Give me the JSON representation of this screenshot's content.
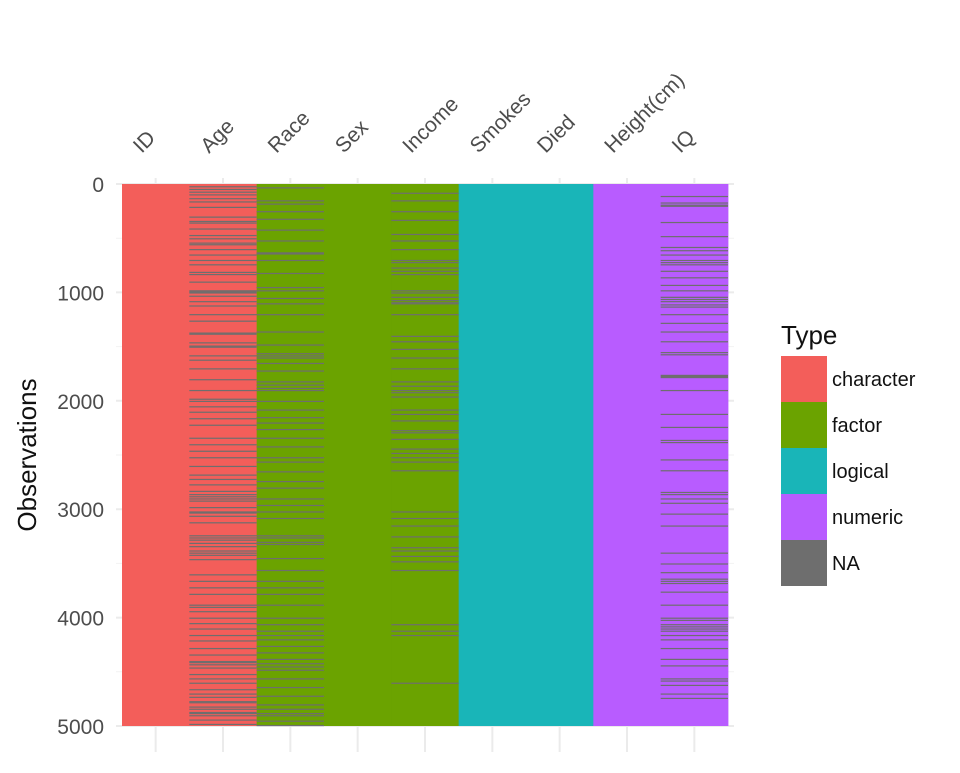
{
  "chart_data": {
    "type": "heatmap",
    "title": "",
    "xlabel": "",
    "ylabel": "Observations",
    "ylim": [
      0,
      5000
    ],
    "yticks": [
      0,
      1000,
      2000,
      3000,
      4000,
      5000
    ],
    "y_reversed": true,
    "columns": [
      {
        "name": "ID",
        "type": "character",
        "missing": []
      },
      {
        "name": "Age",
        "type": "character",
        "missing": [
          20,
          45,
          70,
          95,
          130,
          160,
          210,
          300,
          340,
          355,
          410,
          470,
          500,
          540,
          555,
          600,
          650,
          700,
          740,
          810,
          830,
          900,
          980,
          990,
          1000,
          1030,
          1080,
          1120,
          1200,
          1260,
          1370,
          1380,
          1460,
          1490,
          1500,
          1580,
          1620,
          1700,
          1800,
          1900,
          1980,
          2000,
          2050,
          2100,
          2160,
          2220,
          2340,
          2400,
          2460,
          2520,
          2600,
          2680,
          2720,
          2770,
          2830,
          2860,
          2880,
          2900,
          2920,
          2980,
          3020,
          3030,
          3060,
          3120,
          3240,
          3260,
          3280,
          3310,
          3340,
          3380,
          3400,
          3420,
          3460,
          3600,
          3660,
          3720,
          3780,
          3880,
          3900,
          3940,
          4000,
          4050,
          4100,
          4160,
          4210,
          4280,
          4340,
          4400,
          4410,
          4430,
          4460,
          4520,
          4560,
          4600,
          4660,
          4700,
          4730,
          4770,
          4780,
          4820,
          4840,
          4870,
          4880,
          4900,
          4940,
          4980
        ]
      },
      {
        "name": "Race",
        "type": "factor",
        "missing": [
          30,
          150,
          180,
          250,
          320,
          420,
          520,
          630,
          640,
          700,
          820,
          950,
          980,
          1050,
          1100,
          1200,
          1360,
          1480,
          1560,
          1580,
          1600,
          1650,
          1720,
          1820,
          1850,
          1880,
          1900,
          2000,
          2080,
          2150,
          2200,
          2260,
          2340,
          2420,
          2520,
          2560,
          2650,
          2740,
          2800,
          2900,
          2960,
          3020,
          3080,
          3240,
          3260,
          3300,
          3320,
          3450,
          3560,
          3660,
          3720,
          3780,
          3880,
          4000,
          4060,
          4120,
          4160,
          4200,
          4260,
          4320,
          4380,
          4420,
          4450,
          4480,
          4560,
          4640,
          4720,
          4800,
          4840,
          4880,
          4900,
          4950,
          4990
        ]
      },
      {
        "name": "Sex",
        "type": "factor",
        "missing": []
      },
      {
        "name": "Income",
        "type": "factor",
        "missing": [
          80,
          150,
          250,
          330,
          460,
          520,
          600,
          700,
          720,
          770,
          800,
          830,
          980,
          1000,
          1040,
          1070,
          1090,
          1100,
          1200,
          1400,
          1450,
          1520,
          1600,
          1700,
          1820,
          1860,
          1900,
          1920,
          1960,
          2080,
          2120,
          2180,
          2270,
          2290,
          2350,
          2440,
          2480,
          2520,
          2560,
          2640,
          3020,
          3080,
          3150,
          3250,
          3350,
          3380,
          3430,
          3480,
          3560,
          4060,
          4120,
          4160,
          4600
        ]
      },
      {
        "name": "Smokes",
        "type": "logical",
        "missing": []
      },
      {
        "name": "Died",
        "type": "logical",
        "missing": []
      },
      {
        "name": "Height(cm)",
        "type": "numeric",
        "missing": []
      },
      {
        "name": "IQ",
        "type": "numeric",
        "missing": [
          110,
          170,
          190,
          200,
          350,
          480,
          580,
          610,
          650,
          700,
          720,
          740,
          800,
          860,
          930,
          980,
          1040,
          1060,
          1080,
          1110,
          1130,
          1200,
          1280,
          1360,
          1450,
          1550,
          1570,
          1760,
          1770,
          1780,
          1900,
          2120,
          2240,
          2360,
          2380,
          2540,
          2640,
          2840,
          2860,
          2900,
          2940,
          3040,
          3150,
          3400,
          3500,
          3580,
          3640,
          3660,
          3680,
          3760,
          3880,
          4000,
          4020,
          4060,
          4080,
          4100,
          4120,
          4160,
          4200,
          4280,
          4380,
          4440,
          4560,
          4580,
          4620,
          4700,
          4740
        ]
      }
    ],
    "legend": {
      "title": "Type",
      "placement": "right",
      "entries": [
        {
          "label": "character",
          "color": "#F35E5A"
        },
        {
          "label": "factor",
          "color": "#6BA300"
        },
        {
          "label": "logical",
          "color": "#19B5B8"
        },
        {
          "label": "numeric",
          "color": "#B85CFF"
        },
        {
          "label": "NA",
          "color": "#6E6E6E"
        }
      ]
    },
    "grid": true
  }
}
